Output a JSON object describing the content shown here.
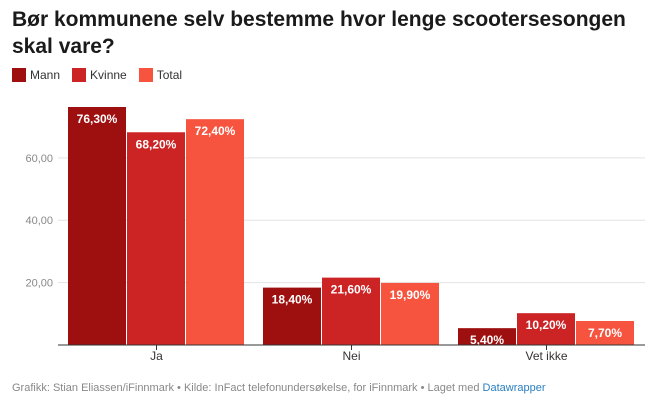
{
  "title": "Bør kommunene selv bestemme hvor lenge scootersesongen skal vare?",
  "legend": [
    {
      "name": "Mann",
      "color": "#9e0f0f"
    },
    {
      "name": "Kvinne",
      "color": "#cc2325"
    },
    {
      "name": "Total",
      "color": "#f75440"
    }
  ],
  "chart_data": {
    "type": "bar",
    "categories": [
      "Ja",
      "Nei",
      "Vet ikke"
    ],
    "series": [
      {
        "name": "Mann",
        "values": [
          76.3,
          18.4,
          5.4
        ],
        "labels": [
          "76,30%",
          "18,40%",
          "5,40%"
        ]
      },
      {
        "name": "Kvinne",
        "values": [
          68.2,
          21.6,
          10.2
        ],
        "labels": [
          "68,20%",
          "21,60%",
          "10,20%"
        ]
      },
      {
        "name": "Total",
        "values": [
          72.4,
          19.9,
          7.7
        ],
        "labels": [
          "72,40%",
          "19,90%",
          "7,70%"
        ]
      }
    ],
    "yticks": [
      20,
      40,
      60
    ],
    "ytick_labels": [
      "20,00",
      "40,00",
      "60,00"
    ],
    "ylim": [
      0,
      76.3
    ],
    "grid": true
  },
  "footer": {
    "text": "Grafikk: Stian Eliassen/iFinnmark • Kilde: InFact telefonundersøkelse, for iFinnmark • Laget med",
    "link": "Datawrapper"
  }
}
